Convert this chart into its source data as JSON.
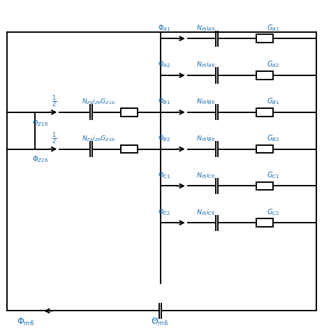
{
  "fig_width": 4.74,
  "fig_height": 4.8,
  "dpi": 100,
  "background": "#ffffff",
  "text_color": "#000000",
  "blue_color": "#1a6aad",
  "right_rows": [
    {
      "phi": "\\Phi_{A1}",
      "src": "N_{r6}i_{A6}",
      "g": "G_{A1}"
    },
    {
      "phi": "\\Phi_{A2}",
      "src": "N_{r6}i_{A6}",
      "g": "G_{A2}"
    },
    {
      "phi": "\\Phi_{B1}",
      "src": "N_{r6}i_{B6}",
      "g": "G_{B1}"
    },
    {
      "phi": "\\Phi_{B2}",
      "src": "N_{r6}i_{B6}",
      "g": "G_{B2}"
    },
    {
      "phi": "\\Phi_{C1}",
      "src": "N_{r6}i_{C6}",
      "g": "G_{C1}"
    },
    {
      "phi": "\\Phi_{C2}",
      "src": "N_{r6}i_{C6}",
      "g": "G_{C2}"
    }
  ],
  "left_rows": [
    {
      "phi": "\\Phi_{Z16}",
      "frac": "\\frac{1}{2}",
      "src": "N_{Z6}i_{Z6}G_{Z16}"
    },
    {
      "phi": "\\Phi_{Z26}",
      "frac": "\\frac{1}{2}",
      "src": "N_{Z6}i_{Z6}G_{Z26}"
    }
  ],
  "bottom_phi": "\\Phi_{m6}",
  "bottom_theta": "\\Theta_{m6}"
}
